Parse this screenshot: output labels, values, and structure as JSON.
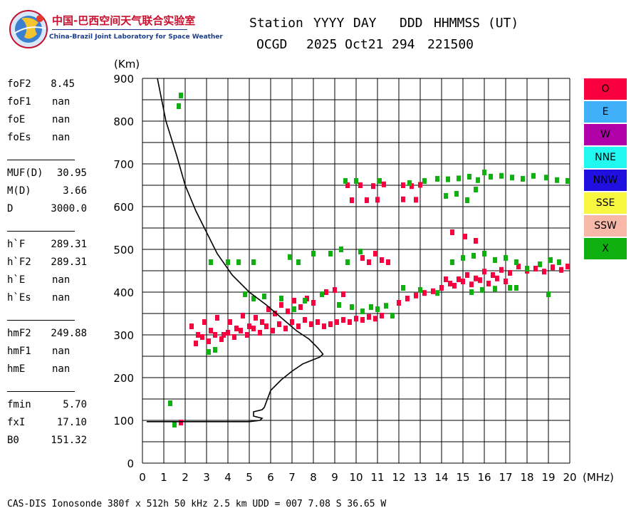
{
  "header": {
    "lab_name_cn": "中国-巴西空间天气联合实验室",
    "lab_name_en": "China-Brazil Joint Laboratory for Space Weather",
    "col_headers": [
      "Station",
      "YYYY",
      "DAY",
      "DDD",
      "HHMMSS (UT)"
    ],
    "col_values": [
      "OCGD",
      "2025 Oct21",
      "294",
      "221500"
    ]
  },
  "params": {
    "group1": [
      {
        "label": "foF2",
        "value": "8.45"
      },
      {
        "label": "foF1",
        "value": "nan"
      },
      {
        "label": "foE",
        "value": "nan"
      },
      {
        "label": "foEs",
        "value": "nan"
      }
    ],
    "group2": [
      {
        "label": "MUF(D)",
        "value": "30.95"
      },
      {
        "label": "M(D)",
        "value": "3.66"
      },
      {
        "label": "D",
        "value": "3000.0"
      }
    ],
    "group3": [
      {
        "label": "h`F",
        "value": "289.31"
      },
      {
        "label": "h`F2",
        "value": "289.31"
      },
      {
        "label": "h`E",
        "value": "nan"
      },
      {
        "label": "h`Es",
        "value": "nan"
      }
    ],
    "group4": [
      {
        "label": "hmF2",
        "value": "249.88"
      },
      {
        "label": "hmF1",
        "value": "nan"
      },
      {
        "label": "hmE",
        "value": "nan"
      }
    ],
    "group5": [
      {
        "label": "fmin",
        "value": "5.70"
      },
      {
        "label": "fxI",
        "value": "17.10"
      },
      {
        "label": "B0",
        "value": "151.32"
      }
    ]
  },
  "legend": [
    {
      "label": "O",
      "color": "#f80040"
    },
    {
      "label": "E",
      "color": "#40b0f8"
    },
    {
      "label": "W",
      "color": "#b000a8"
    },
    {
      "label": "NNE",
      "color": "#20f8f0"
    },
    {
      "label": "NNW",
      "color": "#2010e0"
    },
    {
      "label": "SSE",
      "color": "#f8f840"
    },
    {
      "label": "SSW",
      "color": "#f8b8a8"
    },
    {
      "label": "X",
      "color": "#10b010"
    }
  ],
  "footer": {
    "text": "CAS-DIS Ionosonde 380f x 512h 50 kHz 2.5 km UDD = 007 7.08 S 36.65 W"
  },
  "chart_data": {
    "type": "scatter",
    "xlabel": "(MHz)",
    "ylabel": "(Km)",
    "xlim": [
      0,
      20
    ],
    "ylim": [
      0,
      900
    ],
    "x_ticks": [
      0,
      1,
      2,
      3,
      4,
      5,
      6,
      7,
      8,
      9,
      10,
      11,
      12,
      13,
      14,
      15,
      16,
      17,
      18,
      19,
      20
    ],
    "y_ticks": [
      0,
      100,
      200,
      300,
      400,
      500,
      600,
      700,
      800,
      900
    ],
    "grid": true,
    "legend_position": "right",
    "profile": {
      "x": [
        0.2,
        1.0,
        1.5,
        2.0,
        3.0,
        4.0,
        5.0,
        5.5,
        5.6,
        5.2,
        5.2,
        5.6,
        5.7,
        6.0,
        6.5,
        7.0,
        7.5,
        8.0,
        8.3,
        8.45,
        8.2,
        7.8,
        7.2,
        6.5,
        5.8,
        5.0,
        4.2,
        3.5,
        3.0,
        2.5,
        2.0,
        1.6,
        1.1,
        0.7
      ],
      "y": [
        97,
        97,
        97,
        97,
        97,
        97,
        97,
        100,
        105,
        110,
        120,
        125,
        130,
        170,
        195,
        215,
        232,
        242,
        248,
        255,
        270,
        290,
        310,
        340,
        370,
        400,
        440,
        490,
        540,
        590,
        650,
        720,
        800,
        900
      ]
    },
    "series": [
      {
        "name": "O",
        "color": "#f80040",
        "points": [
          [
            2.3,
            320
          ],
          [
            2.6,
            300
          ],
          [
            2.9,
            330
          ],
          [
            3.2,
            310
          ],
          [
            3.5,
            340
          ],
          [
            3.8,
            300
          ],
          [
            4.1,
            330
          ],
          [
            4.4,
            315
          ],
          [
            4.7,
            345
          ],
          [
            5.0,
            320
          ],
          [
            5.3,
            340
          ],
          [
            5.6,
            330
          ],
          [
            5.9,
            360
          ],
          [
            6.2,
            350
          ],
          [
            6.5,
            370
          ],
          [
            6.8,
            355
          ],
          [
            7.1,
            380
          ],
          [
            7.4,
            365
          ],
          [
            7.7,
            385
          ],
          [
            8.0,
            375
          ],
          [
            2.5,
            280
          ],
          [
            2.8,
            295
          ],
          [
            3.1,
            285
          ],
          [
            3.4,
            300
          ],
          [
            3.7,
            290
          ],
          [
            4.0,
            305
          ],
          [
            4.3,
            295
          ],
          [
            4.6,
            310
          ],
          [
            4.9,
            300
          ],
          [
            5.2,
            315
          ],
          [
            5.5,
            305
          ],
          [
            5.8,
            320
          ],
          [
            6.1,
            310
          ],
          [
            6.4,
            325
          ],
          [
            6.7,
            315
          ],
          [
            7.0,
            330
          ],
          [
            7.3,
            320
          ],
          [
            7.6,
            335
          ],
          [
            7.9,
            325
          ],
          [
            8.2,
            330
          ],
          [
            8.5,
            320
          ],
          [
            8.8,
            325
          ],
          [
            9.1,
            330
          ],
          [
            9.4,
            335
          ],
          [
            9.7,
            330
          ],
          [
            10.0,
            338
          ],
          [
            10.3,
            335
          ],
          [
            10.6,
            342
          ],
          [
            10.9,
            338
          ],
          [
            11.2,
            345
          ],
          [
            8.6,
            400
          ],
          [
            9.0,
            405
          ],
          [
            9.4,
            395
          ],
          [
            10.3,
            480
          ],
          [
            10.6,
            470
          ],
          [
            10.9,
            490
          ],
          [
            11.2,
            475
          ],
          [
            11.5,
            470
          ],
          [
            9.6,
            650
          ],
          [
            10.2,
            650
          ],
          [
            10.8,
            648
          ],
          [
            11.3,
            652
          ],
          [
            12.2,
            650
          ],
          [
            12.6,
            648
          ],
          [
            13.0,
            651
          ],
          [
            9.8,
            615
          ],
          [
            10.5,
            615
          ],
          [
            11.0,
            616
          ],
          [
            12.2,
            617
          ],
          [
            12.8,
            616
          ],
          [
            12.0,
            375
          ],
          [
            12.4,
            385
          ],
          [
            12.8,
            392
          ],
          [
            13.2,
            398
          ],
          [
            13.6,
            402
          ],
          [
            14.0,
            410
          ],
          [
            14.4,
            420
          ],
          [
            14.8,
            430
          ],
          [
            15.2,
            440
          ],
          [
            15.6,
            432
          ],
          [
            16.0,
            448
          ],
          [
            16.4,
            440
          ],
          [
            16.8,
            452
          ],
          [
            17.2,
            445
          ],
          [
            17.6,
            460
          ],
          [
            18.0,
            450
          ],
          [
            18.4,
            455
          ],
          [
            18.8,
            448
          ],
          [
            19.2,
            458
          ],
          [
            19.6,
            452
          ],
          [
            19.9,
            460
          ],
          [
            14.2,
            430
          ],
          [
            14.6,
            415
          ],
          [
            15.0,
            425
          ],
          [
            15.4,
            418
          ],
          [
            15.8,
            428
          ],
          [
            16.2,
            420
          ],
          [
            16.6,
            432
          ],
          [
            17.0,
            425
          ],
          [
            14.5,
            540
          ],
          [
            15.1,
            530
          ],
          [
            15.6,
            520
          ],
          [
            1.8,
            95
          ]
        ]
      },
      {
        "name": "X",
        "color": "#10b010",
        "points": [
          [
            1.8,
            860
          ],
          [
            1.7,
            835
          ],
          [
            1.3,
            140
          ],
          [
            1.5,
            90
          ],
          [
            3.2,
            470
          ],
          [
            4.0,
            470
          ],
          [
            4.5,
            470
          ],
          [
            5.2,
            470
          ],
          [
            6.9,
            482
          ],
          [
            7.3,
            470
          ],
          [
            8.0,
            490
          ],
          [
            8.8,
            490
          ],
          [
            9.3,
            500
          ],
          [
            9.6,
            470
          ],
          [
            10.2,
            495
          ],
          [
            4.8,
            395
          ],
          [
            5.2,
            385
          ],
          [
            5.7,
            390
          ],
          [
            6.5,
            385
          ],
          [
            7.1,
            360
          ],
          [
            7.6,
            380
          ],
          [
            8.4,
            395
          ],
          [
            9.2,
            370
          ],
          [
            9.8,
            365
          ],
          [
            10.3,
            355
          ],
          [
            10.7,
            365
          ],
          [
            11.0,
            360
          ],
          [
            11.4,
            368
          ],
          [
            11.7,
            345
          ],
          [
            3.4,
            265
          ],
          [
            3.1,
            260
          ],
          [
            9.5,
            660
          ],
          [
            10.0,
            660
          ],
          [
            11.1,
            660
          ],
          [
            12.5,
            655
          ],
          [
            13.2,
            660
          ],
          [
            13.8,
            665
          ],
          [
            14.3,
            664
          ],
          [
            14.8,
            666
          ],
          [
            15.3,
            670
          ],
          [
            15.7,
            662
          ],
          [
            16.0,
            680
          ],
          [
            16.3,
            670
          ],
          [
            16.8,
            672
          ],
          [
            17.3,
            668
          ],
          [
            17.8,
            665
          ],
          [
            18.3,
            672
          ],
          [
            18.9,
            668
          ],
          [
            19.4,
            662
          ],
          [
            19.9,
            660
          ],
          [
            14.2,
            625
          ],
          [
            14.7,
            630
          ],
          [
            15.2,
            615
          ],
          [
            15.6,
            640
          ],
          [
            14.5,
            470
          ],
          [
            15.0,
            480
          ],
          [
            15.5,
            485
          ],
          [
            16.0,
            490
          ],
          [
            16.5,
            475
          ],
          [
            17.0,
            480
          ],
          [
            17.5,
            470
          ],
          [
            18.0,
            455
          ],
          [
            18.6,
            465
          ],
          [
            19.1,
            475
          ],
          [
            19.5,
            470
          ],
          [
            15.4,
            400
          ],
          [
            15.9,
            405
          ],
          [
            16.5,
            408
          ],
          [
            17.2,
            410
          ],
          [
            17.5,
            410
          ],
          [
            19.0,
            395
          ],
          [
            12.2,
            410
          ],
          [
            13.0,
            405
          ],
          [
            13.8,
            398
          ]
        ]
      }
    ]
  }
}
